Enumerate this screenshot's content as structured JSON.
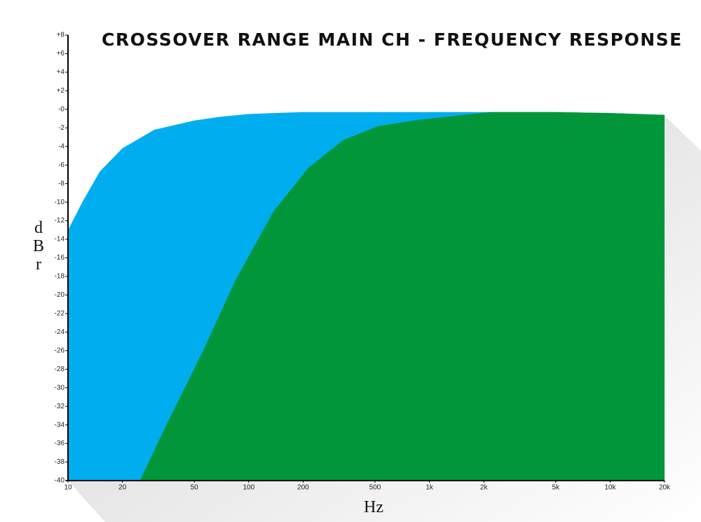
{
  "chart_data": {
    "type": "area",
    "title": "CROSSOVER RANGE MAIN CH - FREQUENCY RESPONSE",
    "x_label": "Hz",
    "y_label": "dBr",
    "xscale": "log",
    "xlim": [
      10,
      20000
    ],
    "ylim": [
      -40,
      8
    ],
    "xticks": [
      10,
      20,
      50,
      100,
      200,
      500,
      {
        "value": 1000,
        "label": "1k"
      },
      {
        "value": 2000,
        "label": "2k"
      },
      {
        "value": 5000,
        "label": "5k"
      },
      {
        "value": 10000,
        "label": "10k"
      },
      {
        "value": 20000,
        "label": "20k"
      }
    ],
    "yticks": [
      {
        "value": 8,
        "label": "+8"
      },
      {
        "value": 6,
        "label": "+6"
      },
      {
        "value": 4,
        "label": "+4"
      },
      {
        "value": 2,
        "label": "+2"
      },
      {
        "value": 0,
        "label": "-0"
      },
      -2,
      -4,
      -6,
      -8,
      -10,
      -12,
      -14,
      -16,
      -18,
      -20,
      -22,
      -24,
      -26,
      -28,
      -30,
      -32,
      -34,
      -36,
      -38,
      -40
    ],
    "series": [
      {
        "color": "#00aeef",
        "x": [
          10,
          12,
          15,
          20,
          30,
          50,
          70,
          100,
          200,
          500,
          1000,
          2000,
          5000,
          10000,
          20000
        ],
        "values": [
          -13,
          -10,
          -6.7,
          -4.2,
          -2.2,
          -1.2,
          -0.8,
          -0.5,
          -0.3,
          -0.3,
          -0.3,
          -0.3,
          -0.3,
          -0.4,
          -0.6
        ]
      },
      {
        "color": "#009639",
        "x": [
          25,
          35,
          56,
          84,
          137,
          214,
          334,
          523,
          894,
          2183,
          5000,
          10000,
          20000
        ],
        "values": [
          -40,
          -34,
          -26,
          -18.5,
          -11,
          -6.3,
          -3.3,
          -1.8,
          -1.1,
          -0.3,
          -0.3,
          -0.4,
          -0.6
        ]
      }
    ]
  }
}
